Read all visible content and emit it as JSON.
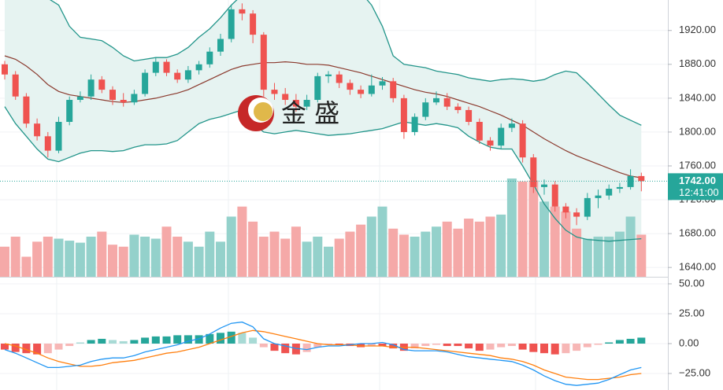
{
  "chart_data": [
    {
      "type": "candlestick",
      "ylim": [
        1629,
        1956
      ],
      "yticks": [
        {
          "value": 1640,
          "label": "1640.00"
        },
        {
          "value": 1680,
          "label": "1680.00"
        },
        {
          "value": 1720,
          "label": "1720.00"
        },
        {
          "value": 1760,
          "label": "1760.00"
        },
        {
          "value": 1800,
          "label": "1800.00"
        },
        {
          "value": 1840,
          "label": "1840.00"
        },
        {
          "value": 1880,
          "label": "1880.00"
        },
        {
          "value": 1920,
          "label": "1920.00"
        }
      ],
      "up_color": "#26a69a",
      "down_color": "#ef5350",
      "up_volume_color": "#94d1cb",
      "down_volume_color": "#f5a9a8",
      "open": [
        1880,
        1868,
        1842,
        1810,
        1795,
        1778,
        1812,
        1838,
        1842,
        1862,
        1850,
        1838,
        1835,
        1845,
        1870,
        1883,
        1870,
        1862,
        1873,
        1880,
        1895,
        1910,
        1945,
        1940,
        1915,
        1850,
        1845,
        1838,
        1830,
        1838,
        1866,
        1868,
        1858,
        1850,
        1845,
        1855,
        1860,
        1840,
        1800,
        1818,
        1835,
        1840,
        1830,
        1826,
        1812,
        1790,
        1784,
        1805,
        1810,
        1770,
        1735,
        1738,
        1712,
        1705,
        1700,
        1722,
        1725,
        1733,
        1735,
        1748
      ],
      "high": [
        1884,
        1872,
        1846,
        1816,
        1800,
        1818,
        1842,
        1848,
        1868,
        1866,
        1854,
        1846,
        1850,
        1874,
        1888,
        1886,
        1874,
        1878,
        1884,
        1900,
        1916,
        1950,
        1952,
        1944,
        1918,
        1858,
        1852,
        1845,
        1844,
        1870,
        1872,
        1872,
        1862,
        1855,
        1868,
        1865,
        1864,
        1844,
        1822,
        1840,
        1848,
        1846,
        1834,
        1830,
        1816,
        1794,
        1810,
        1816,
        1814,
        1774,
        1744,
        1742,
        1716,
        1710,
        1728,
        1732,
        1738,
        1740,
        1756,
        1752
      ],
      "low": [
        1862,
        1838,
        1805,
        1790,
        1770,
        1775,
        1808,
        1835,
        1838,
        1846,
        1832,
        1830,
        1832,
        1842,
        1866,
        1866,
        1858,
        1858,
        1868,
        1876,
        1890,
        1906,
        1932,
        1905,
        1842,
        1838,
        1832,
        1824,
        1826,
        1835,
        1858,
        1852,
        1844,
        1840,
        1842,
        1850,
        1835,
        1792,
        1796,
        1814,
        1832,
        1826,
        1822,
        1808,
        1786,
        1778,
        1780,
        1800,
        1764,
        1728,
        1726,
        1706,
        1698,
        1690,
        1696,
        1710,
        1720,
        1728,
        1732,
        1730
      ],
      "close": [
        1868,
        1842,
        1810,
        1795,
        1778,
        1812,
        1838,
        1842,
        1862,
        1850,
        1838,
        1835,
        1845,
        1870,
        1883,
        1870,
        1862,
        1873,
        1880,
        1895,
        1910,
        1945,
        1940,
        1915,
        1850,
        1845,
        1838,
        1830,
        1838,
        1866,
        1868,
        1858,
        1850,
        1845,
        1855,
        1860,
        1840,
        1800,
        1818,
        1835,
        1840,
        1830,
        1826,
        1812,
        1790,
        1784,
        1805,
        1810,
        1770,
        1735,
        1738,
        1712,
        1705,
        1700,
        1722,
        1725,
        1733,
        1735,
        1748,
        1742
      ],
      "volume": [
        30,
        40,
        20,
        35,
        40,
        38,
        36,
        34,
        40,
        45,
        32,
        30,
        42,
        40,
        38,
        50,
        40,
        35,
        30,
        45,
        35,
        60,
        70,
        55,
        40,
        45,
        38,
        50,
        35,
        40,
        30,
        38,
        45,
        52,
        60,
        70,
        48,
        42,
        40,
        45,
        50,
        55,
        48,
        58,
        55,
        60,
        62,
        98,
        95,
        96,
        75,
        70,
        65,
        48,
        38,
        40,
        40,
        45,
        60,
        42
      ],
      "bands": {
        "band_color": "#22958a",
        "middle_color": "#8b3a2e",
        "fill_color": "#e6f3f1",
        "upper": [
          1975,
          1975,
          1972,
          1965,
          1958,
          1950,
          1925,
          1912,
          1910,
          1908,
          1900,
          1890,
          1884,
          1886,
          1888,
          1888,
          1892,
          1900,
          1912,
          1922,
          1935,
          1950,
          1962,
          1975,
          1985,
          1990,
          1992,
          1992,
          1990,
          1990,
          1988,
          1988,
          1985,
          1965,
          1950,
          1925,
          1890,
          1880,
          1878,
          1876,
          1872,
          1870,
          1868,
          1864,
          1862,
          1860,
          1862,
          1863,
          1862,
          1860,
          1862,
          1868,
          1872,
          1870,
          1858,
          1845,
          1832,
          1820,
          1814,
          1808
        ],
        "middle": [
          1890,
          1886,
          1878,
          1868,
          1856,
          1848,
          1844,
          1842,
          1840,
          1838,
          1836,
          1835,
          1836,
          1838,
          1840,
          1843,
          1846,
          1850,
          1856,
          1862,
          1868,
          1874,
          1878,
          1880,
          1882,
          1882,
          1883,
          1882,
          1880,
          1880,
          1879,
          1876,
          1873,
          1870,
          1866,
          1862,
          1858,
          1854,
          1850,
          1847,
          1845,
          1842,
          1838,
          1834,
          1830,
          1825,
          1820,
          1814,
          1808,
          1800,
          1792,
          1785,
          1778,
          1772,
          1767,
          1762,
          1757,
          1752,
          1748,
          1746
        ],
        "lower": [
          1830,
          1810,
          1795,
          1780,
          1768,
          1765,
          1770,
          1775,
          1778,
          1778,
          1777,
          1778,
          1782,
          1785,
          1785,
          1786,
          1790,
          1800,
          1810,
          1815,
          1818,
          1822,
          1826,
          1810,
          1800,
          1798,
          1800,
          1802,
          1800,
          1798,
          1796,
          1797,
          1798,
          1800,
          1802,
          1804,
          1808,
          1812,
          1810,
          1808,
          1810,
          1808,
          1805,
          1795,
          1788,
          1782,
          1780,
          1780,
          1760,
          1738,
          1715,
          1698,
          1684,
          1676,
          1673,
          1672,
          1671,
          1672,
          1673,
          1674
        ]
      },
      "last_price": 1742,
      "last_price_label": "1742.00",
      "countdown": "12:41:00",
      "watermark": "金 盛"
    },
    {
      "type": "macd",
      "ylim": [
        -38.8,
        55.9
      ],
      "yticks": [
        {
          "value": -25,
          "label": "−25.00"
        },
        {
          "value": 0,
          "label": "0.00"
        },
        {
          "value": 25,
          "label": "25.00"
        },
        {
          "value": 50,
          "label": "50.00"
        }
      ],
      "histogram": [
        -5,
        -7,
        -8,
        -9,
        -8,
        -5,
        -2,
        1,
        3,
        4,
        3,
        2,
        3,
        5,
        6,
        6,
        7,
        7,
        7,
        8,
        9,
        10,
        9,
        5,
        -3,
        -6,
        -8,
        -9,
        -7,
        -3,
        -1,
        -1,
        -2,
        -3,
        -2,
        -2,
        -4,
        -6,
        -4,
        -2,
        -1,
        -2,
        -2,
        -4,
        -6,
        -5,
        -3,
        -2,
        -5,
        -7,
        -8,
        -9,
        -8,
        -6,
        -3,
        -1,
        1,
        3,
        4,
        5
      ],
      "macd": [
        -5,
        -8,
        -12,
        -16,
        -20,
        -20,
        -19,
        -18,
        -15,
        -13,
        -12,
        -12,
        -10,
        -7,
        -5,
        -3,
        -1,
        2,
        4,
        8,
        13,
        17,
        18,
        14,
        4,
        0,
        -2,
        -4,
        -5,
        -3,
        -2,
        -2,
        -1,
        0,
        0,
        1,
        -1,
        -5,
        -6,
        -6,
        -6,
        -7,
        -9,
        -11,
        -12,
        -13,
        -14,
        -15,
        -18,
        -22,
        -27,
        -31,
        -34,
        -35,
        -34,
        -33,
        -30,
        -26,
        -22,
        -20
      ],
      "signal": [
        0,
        -2,
        -5,
        -8,
        -12,
        -15,
        -17,
        -19,
        -19,
        -18,
        -16,
        -15,
        -14,
        -12,
        -10,
        -8,
        -7,
        -5,
        -3,
        0,
        3,
        6,
        9,
        11,
        10,
        8,
        6,
        4,
        2,
        0,
        -1,
        -1,
        -1,
        -2,
        -2,
        -2,
        -3,
        -3,
        -3,
        -4,
        -5,
        -6,
        -7,
        -8,
        -9,
        -10,
        -12,
        -13,
        -15,
        -18,
        -22,
        -25,
        -28,
        -29,
        -30,
        -30,
        -29,
        -28,
        -26,
        -25
      ],
      "macd_color": "#2196f3",
      "signal_color": "#ff7f0e",
      "up_color": "#26a69a",
      "down_color": "#ef5350",
      "up_light_color": "#a8dad5",
      "down_light_color": "#f7b7b6"
    }
  ]
}
